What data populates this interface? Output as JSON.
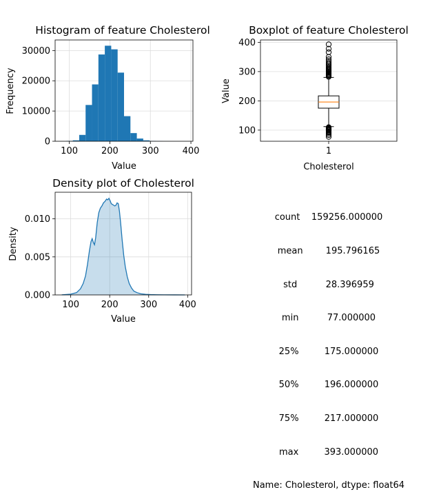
{
  "chart_data": [
    {
      "type": "bar",
      "title": "Histogram of feature Cholesterol",
      "xlabel": "Value",
      "ylabel": "Frequency",
      "xlim": [
        65,
        405
      ],
      "ylim": [
        0,
        33500
      ],
      "xticks": [
        100,
        200,
        300,
        400
      ],
      "yticks": [
        0,
        10000,
        20000,
        30000
      ],
      "grid": true,
      "bin_width": 15.8,
      "bins": [
        {
          "x0": 77.0,
          "x1": 92.8,
          "count": 20
        },
        {
          "x0": 92.8,
          "x1": 108.6,
          "count": 120
        },
        {
          "x0": 108.6,
          "x1": 124.4,
          "count": 300
        },
        {
          "x0": 124.4,
          "x1": 140.2,
          "count": 2100
        },
        {
          "x0": 140.2,
          "x1": 156.0,
          "count": 12000
        },
        {
          "x0": 156.0,
          "x1": 171.8,
          "count": 18800
        },
        {
          "x0": 171.8,
          "x1": 187.6,
          "count": 28700
        },
        {
          "x0": 187.6,
          "x1": 203.4,
          "count": 31600
        },
        {
          "x0": 203.4,
          "x1": 219.2,
          "count": 30400
        },
        {
          "x0": 219.2,
          "x1": 235.0,
          "count": 22700
        },
        {
          "x0": 235.0,
          "x1": 250.8,
          "count": 8300
        },
        {
          "x0": 250.8,
          "x1": 266.6,
          "count": 2700
        },
        {
          "x0": 266.6,
          "x1": 282.4,
          "count": 900
        },
        {
          "x0": 282.4,
          "x1": 298.2,
          "count": 300
        },
        {
          "x0": 298.2,
          "x1": 314.0,
          "count": 100
        },
        {
          "x0": 314.0,
          "x1": 329.8,
          "count": 40
        },
        {
          "x0": 329.8,
          "x1": 345.6,
          "count": 15
        },
        {
          "x0": 345.6,
          "x1": 361.4,
          "count": 8
        },
        {
          "x0": 361.4,
          "x1": 377.2,
          "count": 4
        },
        {
          "x0": 377.2,
          "x1": 393.0,
          "count": 2
        }
      ],
      "color": "#1f77b4"
    },
    {
      "type": "boxplot",
      "title": "Boxplot of feature Cholesterol",
      "xlabel": "Cholesterol",
      "ylabel": "Value",
      "xticks": [
        "1"
      ],
      "ylim": [
        62,
        408
      ],
      "yticks": [
        100,
        200,
        300,
        400
      ],
      "grid": true,
      "q1": 175,
      "median": 196,
      "q3": 217,
      "whisker_low": 112,
      "whisker_high": 280,
      "fliers": [
        77,
        83,
        88,
        92,
        95,
        98,
        100,
        102,
        104,
        106,
        108,
        110,
        282,
        285,
        288,
        291,
        294,
        297,
        300,
        303,
        306,
        309,
        312,
        316,
        320,
        325,
        330,
        336,
        342,
        350,
        366,
        378,
        393
      ],
      "median_color": "#ff7f0e"
    },
    {
      "type": "area",
      "title": "Density plot of Cholesterol",
      "xlabel": "Value",
      "ylabel": "Density",
      "xlim": [
        60,
        410
      ],
      "ylim": [
        0,
        0.0135
      ],
      "xticks": [
        100,
        200,
        300,
        400
      ],
      "yticks": [
        0.0,
        0.005,
        0.01
      ],
      "ytick_labels": [
        "0.000",
        "0.005",
        "0.010"
      ],
      "grid": true,
      "color": "#1f77b4",
      "fill_color": "#1f77b4",
      "x": [
        77,
        100,
        115,
        125,
        132,
        138,
        143,
        148,
        152,
        155,
        158,
        161,
        164,
        168,
        172,
        176,
        180,
        184,
        188,
        192,
        195,
        198,
        201,
        204,
        207,
        210,
        213,
        216,
        219,
        222,
        225,
        228,
        232,
        236,
        240,
        245,
        250,
        256,
        262,
        270,
        280,
        292,
        305,
        320,
        340,
        365,
        393
      ],
      "y": [
        1e-05,
        0.0001,
        0.0003,
        0.0008,
        0.0015,
        0.0025,
        0.004,
        0.0058,
        0.007,
        0.0074,
        0.0069,
        0.0066,
        0.0075,
        0.0095,
        0.0108,
        0.0114,
        0.0117,
        0.0121,
        0.0123,
        0.0126,
        0.0125,
        0.0127,
        0.0124,
        0.012,
        0.0119,
        0.0118,
        0.0117,
        0.0118,
        0.0121,
        0.012,
        0.011,
        0.0095,
        0.0072,
        0.0052,
        0.0037,
        0.0024,
        0.0015,
        0.0009,
        0.0005,
        0.0003,
        0.00015,
        8e-05,
        4e-05,
        2e-05,
        1e-05,
        5e-06,
        2e-06
      ]
    }
  ],
  "stats": {
    "lines": [
      "count    159256.000000",
      "mean        195.796165",
      "std          28.396959",
      "min          77.000000",
      "25%         175.000000",
      "50%         196.000000",
      "75%         217.000000",
      "max         393.000000",
      "Name: Cholesterol, dtype: float64"
    ]
  }
}
